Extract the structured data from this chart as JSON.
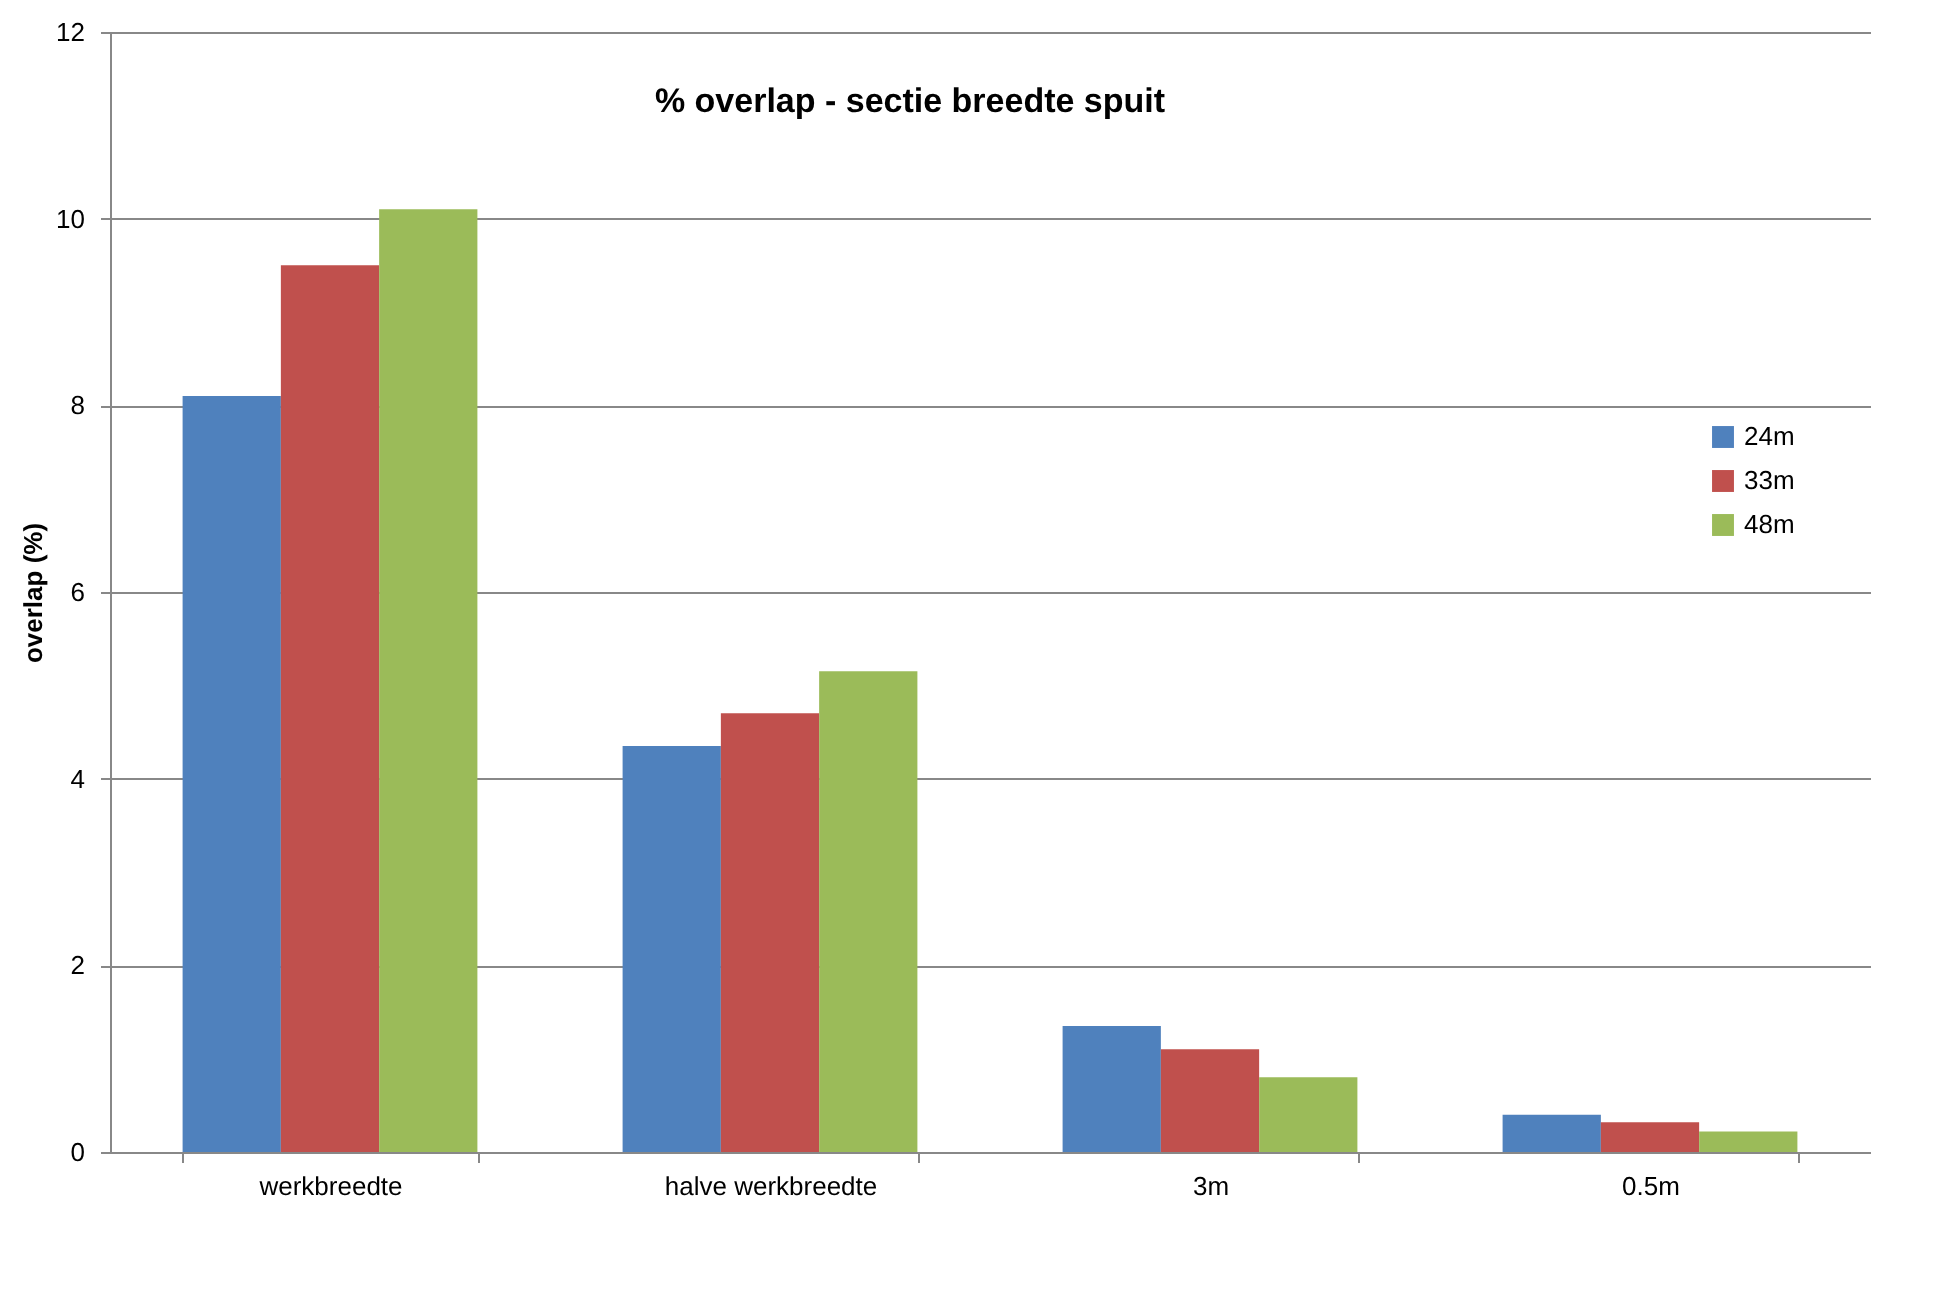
{
  "chart_data": {
    "type": "bar",
    "title": "% overlap - sectie breedte spuit",
    "ylabel": "overlap (%)",
    "categories": [
      "werkbreedte",
      "halve werkbreedte",
      "3m",
      "0.5m"
    ],
    "series": [
      {
        "name": "24m",
        "color": "#4f81bd",
        "values": [
          8.1,
          4.35,
          1.35,
          0.4
        ]
      },
      {
        "name": "33m",
        "color": "#c0504d",
        "values": [
          9.5,
          4.7,
          1.1,
          0.32
        ]
      },
      {
        "name": "48m",
        "color": "#9bbb59",
        "values": [
          10.1,
          5.15,
          0.8,
          0.22
        ]
      }
    ],
    "ylim": [
      0,
      12
    ],
    "yticks": [
      0,
      2,
      4,
      6,
      8,
      10,
      12
    ],
    "grid": "y",
    "legend": "right"
  }
}
